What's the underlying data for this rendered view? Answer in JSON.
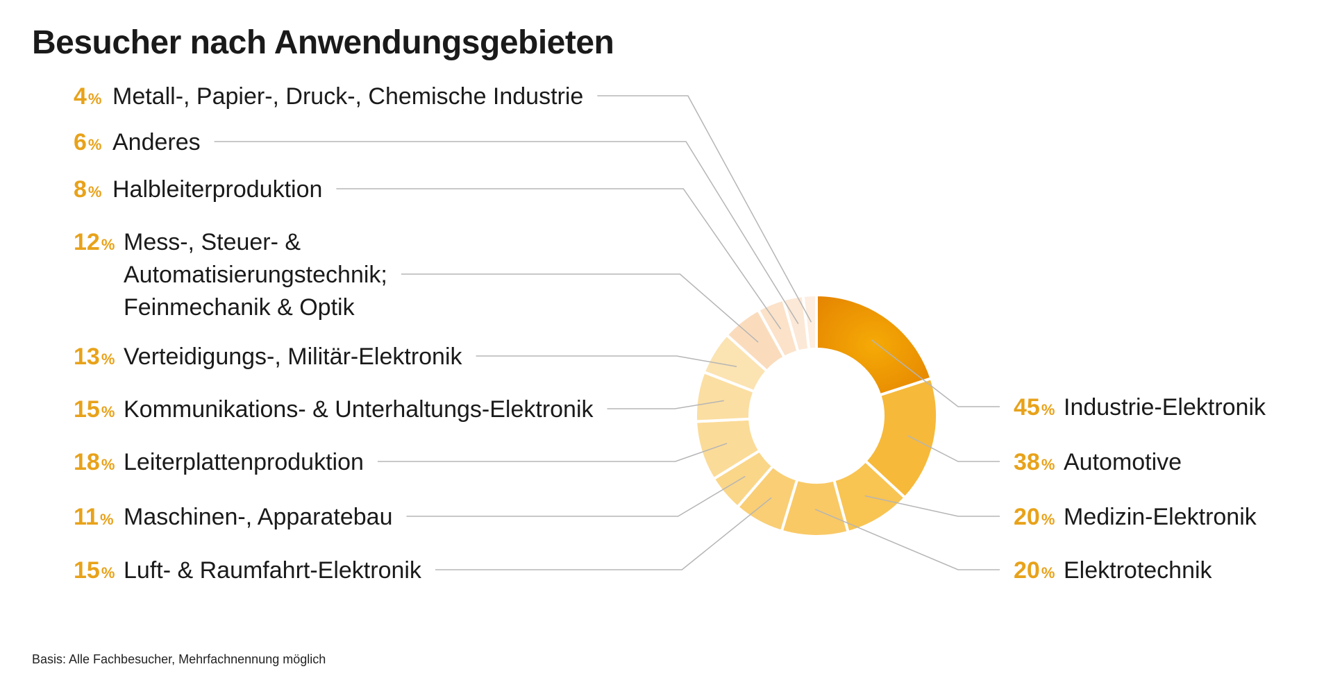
{
  "title": "Besucher nach Anwendungsgebieten",
  "footnote": "Basis: Alle Fachbesucher, Mehrfachnennung möglich",
  "chart_data": {
    "type": "pie",
    "variant": "donut",
    "title": "Besucher nach Anwendungsgebieten",
    "unit": "%",
    "series": [
      {
        "label": "Industrie-Elektronik",
        "value": 45,
        "color": "#f0a412",
        "side": "right"
      },
      {
        "label": "Automotive",
        "value": 38,
        "color": "#f6b93a",
        "side": "right"
      },
      {
        "label": "Medizin-Elektronik",
        "value": 20,
        "color": "#f8c452",
        "side": "right"
      },
      {
        "label": "Elektrotechnik",
        "value": 20,
        "color": "#f9c966",
        "side": "right"
      },
      {
        "label": "Luft- & Raumfahrt-Elektronik",
        "value": 15,
        "color": "#f9ce75",
        "side": "left"
      },
      {
        "label": "Maschinen-, Apparatebau",
        "value": 11,
        "color": "#fad688",
        "side": "left"
      },
      {
        "label": "Leiterplattenproduktion",
        "value": 18,
        "color": "#fbdb98",
        "side": "left"
      },
      {
        "label": "Kommunikations- & Unterhaltungs-Elektronik",
        "value": 15,
        "color": "#fbdea2",
        "side": "left"
      },
      {
        "label": "Verteidigungs-, Militär-Elektronik",
        "value": 13,
        "color": "#fbe3b2",
        "side": "left"
      },
      {
        "label": "Mess-, Steuer- & Automatisierungstechnik; Feinmechanik & Optik",
        "label_lines": [
          "Mess-, Steuer- &",
          "Automatisierungstechnik;",
          "Feinmechanik & Optik"
        ],
        "value": 12,
        "color": "#fadcbd",
        "side": "left"
      },
      {
        "label": "Halbleiterproduktion",
        "value": 8,
        "color": "#fbe2c9",
        "side": "left"
      },
      {
        "label": "Anderes",
        "value": 6,
        "color": "#fce8d6",
        "side": "left"
      },
      {
        "label": "Metall-, Papier-, Druck-, Chemische Industrie",
        "value": 4,
        "color": "#fdeee1",
        "side": "left"
      }
    ]
  }
}
